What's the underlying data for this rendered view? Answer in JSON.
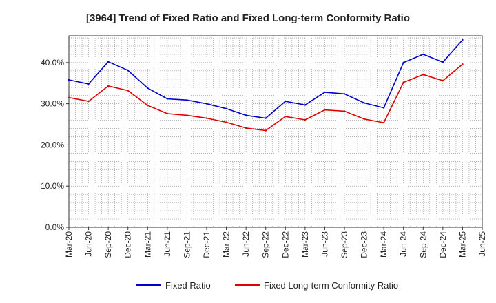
{
  "chart_data": {
    "type": "line",
    "title": "[3964]  Trend of Fixed Ratio and Fixed Long-term Conformity Ratio",
    "xlabel": "",
    "ylabel": "",
    "x": [
      "Mar-20",
      "Jun-20",
      "Sep-20",
      "Dec-20",
      "Mar-21",
      "Jun-21",
      "Sep-21",
      "Dec-21",
      "Mar-22",
      "Jun-22",
      "Sep-22",
      "Dec-22",
      "Mar-23",
      "Jun-23",
      "Sep-23",
      "Dec-23",
      "Mar-24",
      "Jun-24",
      "Sep-24",
      "Dec-24",
      "Mar-25",
      "Jun-25"
    ],
    "yticks": [
      0,
      10,
      20,
      30,
      40
    ],
    "ytick_labels": [
      "0.0%",
      "10.0%",
      "20.0%",
      "30.0%",
      "40.0%"
    ],
    "ylim": [
      0,
      46.5
    ],
    "grid": true,
    "legend_position": "bottom",
    "series": [
      {
        "name": "Fixed Ratio",
        "color": "#0000cc",
        "values": [
          35.8,
          34.8,
          40.2,
          38.1,
          33.8,
          31.2,
          30.9,
          30.0,
          28.8,
          27.2,
          26.5,
          30.6,
          29.7,
          32.8,
          32.4,
          30.2,
          29.0,
          40.0,
          42.0,
          40.1,
          45.5,
          null
        ]
      },
      {
        "name": "Fixed Long-term Conformity Ratio",
        "color": "#e00000",
        "values": [
          31.5,
          30.6,
          34.3,
          33.2,
          29.6,
          27.6,
          27.2,
          26.5,
          25.5,
          24.1,
          23.5,
          26.9,
          26.1,
          28.5,
          28.2,
          26.3,
          25.4,
          35.2,
          37.1,
          35.6,
          39.6,
          null
        ]
      }
    ]
  }
}
